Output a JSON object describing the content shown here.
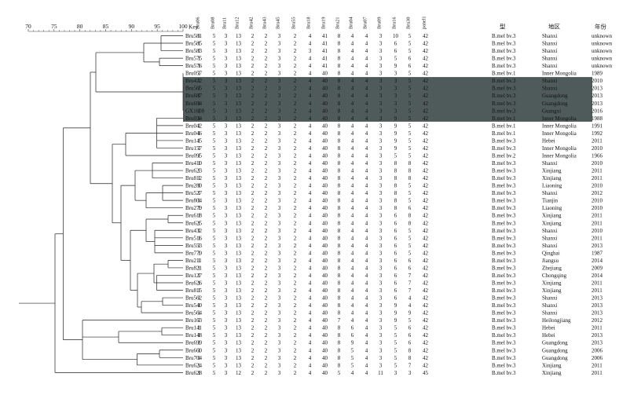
{
  "scale": {
    "ticks": [
      "70",
      "75",
      "80",
      "85",
      "90",
      "95",
      "100"
    ],
    "key_label": "Key"
  },
  "columns": [
    "Bru06",
    "Bru08",
    "Bru11",
    "Bru12",
    "Bru42",
    "Bru43",
    "Bru45",
    "Bru55",
    "Bru18",
    "Bru19",
    "Bru21",
    "Bru04",
    "Bru07",
    "Bru09",
    "Bru16",
    "Bru30",
    "panel1"
  ],
  "extra_headers": {
    "type": "型",
    "region": "地区",
    "year": "年份"
  },
  "highlighted_rows": [
    6,
    7,
    8,
    9,
    10,
    11
  ],
  "rows": [
    {
      "key": "Bru581",
      "v": [
        "1",
        "5",
        "3",
        "13",
        "2",
        "2",
        "3",
        "2",
        "4",
        "41",
        "8",
        "4",
        "4",
        "3",
        "10",
        "5",
        "42"
      ],
      "type": "B.mel bv.3",
      "region": "Shanxi",
      "year": "unknown"
    },
    {
      "key": "Bru585",
      "v": [
        "1",
        "5",
        "3",
        "13",
        "2",
        "2",
        "3",
        "2",
        "4",
        "41",
        "8",
        "4",
        "4",
        "3",
        "6",
        "5",
        "42"
      ],
      "type": "B.mel bv.3",
      "region": "Shanxi",
      "year": "unknown"
    },
    {
      "key": "Bru583",
      "v": [
        "1",
        "5",
        "3",
        "13",
        "2",
        "2",
        "3",
        "2",
        "3",
        "41",
        "8",
        "4",
        "4",
        "3",
        "6",
        "5",
        "42"
      ],
      "type": "B.mel bv.3",
      "region": "Shanxi",
      "year": "unknown"
    },
    {
      "key": "Bru575",
      "v": [
        "1",
        "5",
        "3",
        "13",
        "2",
        "2",
        "3",
        "2",
        "4",
        "41",
        "8",
        "4",
        "4",
        "3",
        "5",
        "6",
        "42"
      ],
      "type": "B.mel bv.3",
      "region": "Shanxi",
      "year": "unknown"
    },
    {
      "key": "Bru576",
      "v": [
        "1",
        "5",
        "3",
        "13",
        "2",
        "2",
        "3",
        "2",
        "4",
        "41",
        "8",
        "4",
        "4",
        "3",
        "9",
        "6",
        "42"
      ],
      "type": "B.mel bv.3",
      "region": "Shanxi",
      "year": "unknown"
    },
    {
      "key": "Bru057",
      "v": [
        "1",
        "5",
        "3",
        "13",
        "2",
        "2",
        "3",
        "2",
        "4",
        "40",
        "8",
        "4",
        "4",
        "3",
        "3",
        "5",
        "42"
      ],
      "type": "B.mel bv.1",
      "region": "Inner Mongolia",
      "year": "1989"
    },
    {
      "key": "Bru422",
      "v": [
        "1",
        "5",
        "3",
        "13",
        "2",
        "2",
        "3",
        "2",
        "4",
        "40",
        "8",
        "4",
        "4",
        "3",
        "3",
        "5",
        "42"
      ],
      "type": "B.mel bv.3",
      "region": "Shanxi",
      "year": "2010"
    },
    {
      "key": "Bru565",
      "v": [
        "1",
        "5",
        "3",
        "13",
        "2",
        "2",
        "3",
        "2",
        "4",
        "40",
        "8",
        "4",
        "4",
        "3",
        "3",
        "5",
        "42"
      ],
      "type": "B.mel bv.3",
      "region": "Shanxi",
      "year": "2013"
    },
    {
      "key": "Bru687",
      "v": [
        "1",
        "5",
        "3",
        "13",
        "2",
        "2",
        "3",
        "2",
        "4",
        "40",
        "8",
        "4",
        "4",
        "3",
        "3",
        "5",
        "42"
      ],
      "type": "B.mel bv.3",
      "region": "Guangdong",
      "year": "2013"
    },
    {
      "key": "Bru694",
      "v": [
        "1",
        "5",
        "3",
        "13",
        "2",
        "2",
        "3",
        "2",
        "4",
        "40",
        "8",
        "4",
        "4",
        "3",
        "3",
        "5",
        "42"
      ],
      "type": "B.mel bv.3",
      "region": "Guangdong",
      "year": "2013"
    },
    {
      "key": "GX1608",
      "v": [
        "1",
        "5",
        "3",
        "13",
        "2",
        "2",
        "3",
        "2",
        "4",
        "40",
        "8",
        "4",
        "4",
        "3",
        "3",
        "5",
        "42"
      ],
      "type": "B.mel bv.3",
      "region": "Guangxi",
      "year": "2016"
    },
    {
      "key": "Bru034",
      "v": [
        "1",
        "5",
        "3",
        "13",
        "2",
        "2",
        "3",
        "2",
        "4",
        "40",
        "8",
        "4",
        "4",
        "3",
        "9",
        "5",
        "42"
      ],
      "type": "B.mel bv.1",
      "region": "Inner Mongolia",
      "year": "1988"
    },
    {
      "key": "Bru042",
      "v": [
        "1",
        "5",
        "3",
        "13",
        "2",
        "2",
        "3",
        "2",
        "4",
        "40",
        "8",
        "4",
        "4",
        "3",
        "9",
        "5",
        "42"
      ],
      "type": "B.mel bv.1",
      "region": "Inner Mongolia",
      "year": "1991"
    },
    {
      "key": "Bru046",
      "v": [
        "1",
        "5",
        "3",
        "13",
        "2",
        "2",
        "3",
        "2",
        "4",
        "40",
        "8",
        "4",
        "4",
        "3",
        "9",
        "5",
        "42"
      ],
      "type": "B.mel bv.1",
      "region": "Inner Mongolia",
      "year": "1992"
    },
    {
      "key": "Bru145",
      "v": [
        "1",
        "5",
        "3",
        "13",
        "2",
        "2",
        "3",
        "2",
        "4",
        "40",
        "8",
        "4",
        "4",
        "3",
        "9",
        "5",
        "42"
      ],
      "type": "B.mel bv.3",
      "region": "Hebei",
      "year": "2011"
    },
    {
      "key": "Bru157",
      "v": [
        "1",
        "5",
        "3",
        "13",
        "2",
        "2",
        "3",
        "2",
        "4",
        "40",
        "8",
        "4",
        "4",
        "3",
        "9",
        "5",
        "42"
      ],
      "type": "B.mel bv.3",
      "region": "Inner Mongolia",
      "year": "2010"
    },
    {
      "key": "Bru095",
      "v": [
        "1",
        "5",
        "3",
        "13",
        "2",
        "2",
        "3",
        "2",
        "4",
        "40",
        "8",
        "4",
        "4",
        "3",
        "5",
        "5",
        "42"
      ],
      "type": "B.mel bv.2",
      "region": "Inner Mongolia",
      "year": "1966"
    },
    {
      "key": "Bru410",
      "v": [
        "1",
        "5",
        "3",
        "13",
        "2",
        "2",
        "3",
        "2",
        "4",
        "40",
        "8",
        "4",
        "4",
        "3",
        "8",
        "8",
        "42"
      ],
      "type": "B.mel bv.3",
      "region": "Shanxi",
      "year": "2010"
    },
    {
      "key": "Bru623",
      "v": [
        "1",
        "5",
        "3",
        "13",
        "2",
        "2",
        "3",
        "2",
        "4",
        "40",
        "8",
        "4",
        "4",
        "3",
        "8",
        "8",
        "42"
      ],
      "type": "B.mel bv.3",
      "region": "Xinjiang",
      "year": "2011"
    },
    {
      "key": "Bru812",
      "v": [
        "1",
        "5",
        "3",
        "13",
        "2",
        "2",
        "3",
        "2",
        "4",
        "40",
        "8",
        "4",
        "4",
        "3",
        "8",
        "8",
        "42"
      ],
      "type": "B.mel bv.3",
      "region": "Xinjiang",
      "year": "2011"
    },
    {
      "key": "Bru280",
      "v": [
        "1",
        "5",
        "3",
        "13",
        "2",
        "2",
        "3",
        "2",
        "4",
        "40",
        "8",
        "4",
        "4",
        "3",
        "8",
        "5",
        "42"
      ],
      "type": "B.mel bv.3",
      "region": "Liaoning",
      "year": "2010"
    },
    {
      "key": "Bru527",
      "v": [
        "1",
        "5",
        "3",
        "13",
        "2",
        "2",
        "3",
        "2",
        "4",
        "40",
        "8",
        "4",
        "4",
        "3",
        "8",
        "5",
        "42"
      ],
      "type": "B.mel bv.3",
      "region": "Shanxi",
      "year": "2012"
    },
    {
      "key": "Bru804",
      "v": [
        "1",
        "5",
        "3",
        "13",
        "2",
        "2",
        "3",
        "2",
        "4",
        "40",
        "8",
        "4",
        "4",
        "3",
        "8",
        "5",
        "42"
      ],
      "type": "B.mel bv.3",
      "region": "Tianjin",
      "year": "2010"
    },
    {
      "key": "Bru279",
      "v": [
        "1",
        "5",
        "3",
        "13",
        "2",
        "2",
        "3",
        "2",
        "4",
        "40",
        "8",
        "4",
        "4",
        "3",
        "8",
        "6",
        "42"
      ],
      "type": "B.mel bv.3",
      "region": "Liaoning",
      "year": "2010"
    },
    {
      "key": "Bru618",
      "v": [
        "1",
        "5",
        "3",
        "13",
        "2",
        "2",
        "3",
        "2",
        "4",
        "40",
        "8",
        "4",
        "4",
        "3",
        "6",
        "8",
        "42"
      ],
      "type": "B.mel bv.3",
      "region": "Xinjiang",
      "year": "2011"
    },
    {
      "key": "Bru625",
      "v": [
        "1",
        "5",
        "3",
        "13",
        "2",
        "2",
        "3",
        "2",
        "4",
        "40",
        "8",
        "4",
        "4",
        "3",
        "6",
        "8",
        "42"
      ],
      "type": "B.mel bv.3",
      "region": "Xinjiang",
      "year": "2011"
    },
    {
      "key": "Bru432",
      "v": [
        "1",
        "5",
        "3",
        "13",
        "2",
        "2",
        "3",
        "2",
        "4",
        "40",
        "8",
        "4",
        "4",
        "3",
        "6",
        "5",
        "42"
      ],
      "type": "B.mel bv.3",
      "region": "Shanxi",
      "year": "2010"
    },
    {
      "key": "Bru516",
      "v": [
        "1",
        "5",
        "3",
        "13",
        "2",
        "2",
        "3",
        "2",
        "4",
        "40",
        "8",
        "4",
        "4",
        "3",
        "6",
        "5",
        "42"
      ],
      "type": "B.mel bv.3",
      "region": "Shanxi",
      "year": "2011"
    },
    {
      "key": "Bru553",
      "v": [
        "1",
        "5",
        "3",
        "13",
        "2",
        "2",
        "3",
        "2",
        "4",
        "40",
        "8",
        "4",
        "4",
        "3",
        "6",
        "5",
        "42"
      ],
      "type": "B.mel bv.3",
      "region": "Shanxi",
      "year": "2013"
    },
    {
      "key": "Bru779",
      "v": [
        "1",
        "5",
        "3",
        "13",
        "2",
        "2",
        "3",
        "2",
        "4",
        "40",
        "8",
        "4",
        "4",
        "3",
        "6",
        "5",
        "42"
      ],
      "type": "B.mel bv.3",
      "region": "Qinghai",
      "year": "1987"
    },
    {
      "key": "Bru211",
      "v": [
        "1",
        "5",
        "3",
        "13",
        "2",
        "2",
        "3",
        "2",
        "4",
        "40",
        "8",
        "4",
        "4",
        "3",
        "6",
        "6",
        "42"
      ],
      "type": "B.mel bv.3",
      "region": "Jiangsu",
      "year": "2014"
    },
    {
      "key": "Bru821",
      "v": [
        "1",
        "5",
        "3",
        "13",
        "2",
        "2",
        "3",
        "2",
        "4",
        "40",
        "8",
        "4",
        "4",
        "3",
        "6",
        "6",
        "42"
      ],
      "type": "B.mel bv.3",
      "region": "Zhejiang",
      "year": "2009"
    },
    {
      "key": "Bru127",
      "v": [
        "1",
        "5",
        "3",
        "13",
        "2",
        "2",
        "3",
        "2",
        "4",
        "40",
        "8",
        "4",
        "4",
        "3",
        "6",
        "7",
        "42"
      ],
      "type": "B.mel bv.3",
      "region": "Chongqing",
      "year": "2014"
    },
    {
      "key": "Bru626",
      "v": [
        "1",
        "5",
        "3",
        "13",
        "2",
        "2",
        "3",
        "2",
        "4",
        "40",
        "8",
        "4",
        "4",
        "3",
        "6",
        "7",
        "42"
      ],
      "type": "B.mel bv.3",
      "region": "Xinjiang",
      "year": "2011"
    },
    {
      "key": "Bru815",
      "v": [
        "1",
        "5",
        "3",
        "13",
        "2",
        "2",
        "3",
        "2",
        "4",
        "40",
        "8",
        "4",
        "4",
        "3",
        "6",
        "7",
        "42"
      ],
      "type": "B.mel bv.3",
      "region": "Xinjiang",
      "year": "2011"
    },
    {
      "key": "Bru562",
      "v": [
        "1",
        "5",
        "3",
        "13",
        "2",
        "2",
        "3",
        "2",
        "4",
        "40",
        "8",
        "4",
        "4",
        "3",
        "6",
        "4",
        "42"
      ],
      "type": "B.mel bv.3",
      "region": "Shanxi",
      "year": "2013"
    },
    {
      "key": "Bru540",
      "v": [
        "1",
        "5",
        "3",
        "13",
        "2",
        "2",
        "3",
        "2",
        "4",
        "40",
        "8",
        "4",
        "4",
        "3",
        "9",
        "4",
        "42"
      ],
      "type": "B.mel bv.3",
      "region": "Shanxi",
      "year": "2013"
    },
    {
      "key": "Bru564",
      "v": [
        "1",
        "5",
        "3",
        "13",
        "2",
        "2",
        "3",
        "2",
        "4",
        "40",
        "8",
        "4",
        "4",
        "3",
        "9",
        "9",
        "42"
      ],
      "type": "B.mel bv.3",
      "region": "Shanxi",
      "year": "2013"
    },
    {
      "key": "Bru163",
      "v": [
        "1",
        "5",
        "3",
        "13",
        "2",
        "2",
        "3",
        "2",
        "4",
        "40",
        "7",
        "4",
        "4",
        "3",
        "9",
        "5",
        "42"
      ],
      "type": "B.mel bv.3",
      "region": "Heilongjiang",
      "year": "2012"
    },
    {
      "key": "Bru141",
      "v": [
        "1",
        "5",
        "3",
        "13",
        "2",
        "2",
        "3",
        "2",
        "4",
        "40",
        "8",
        "6",
        "4",
        "3",
        "5",
        "6",
        "42"
      ],
      "type": "B.mel bv.3",
      "region": "Hebei",
      "year": "2011"
    },
    {
      "key": "Bru148",
      "v": [
        "1",
        "5",
        "3",
        "13",
        "2",
        "2",
        "3",
        "2",
        "4",
        "40",
        "8",
        "6",
        "4",
        "3",
        "5",
        "6",
        "42"
      ],
      "type": "B.mel bv.3",
      "region": "Hebei",
      "year": "2013"
    },
    {
      "key": "Bru699",
      "v": [
        "1",
        "5",
        "3",
        "13",
        "2",
        "2",
        "3",
        "2",
        "4",
        "40",
        "8",
        "9",
        "4",
        "3",
        "5",
        "6",
        "42"
      ],
      "type": "B.mel bv.3",
      "region": "Guangdong",
      "year": "2013"
    },
    {
      "key": "Bru660",
      "v": [
        "1",
        "5",
        "3",
        "13",
        "2",
        "2",
        "3",
        "2",
        "4",
        "40",
        "8",
        "5",
        "4",
        "3",
        "5",
        "8",
        "42"
      ],
      "type": "B.mel bv.3",
      "region": "Guangdong",
      "year": "2006"
    },
    {
      "key": "Bru704",
      "v": [
        "1",
        "5",
        "3",
        "13",
        "2",
        "2",
        "3",
        "2",
        "4",
        "40",
        "8",
        "5",
        "4",
        "3",
        "5",
        "8",
        "42"
      ],
      "type": "B.mel bv.3",
      "region": "Guangdong",
      "year": "2006"
    },
    {
      "key": "Bru624",
      "v": [
        "1",
        "5",
        "3",
        "13",
        "2",
        "2",
        "3",
        "2",
        "4",
        "40",
        "8",
        "5",
        "4",
        "3",
        "5",
        "7",
        "42"
      ],
      "type": "B.mel bv.3",
      "region": "Xinjiang",
      "year": "2011"
    },
    {
      "key": "Bru628",
      "v": [
        "1",
        "5",
        "3",
        "12",
        "2",
        "2",
        "3",
        "2",
        "4",
        "40",
        "5",
        "4",
        "4",
        "11",
        "3",
        "3",
        "45"
      ],
      "type": "B.mel bv.3",
      "region": "Xinjiang",
      "year": "2011"
    }
  ]
}
